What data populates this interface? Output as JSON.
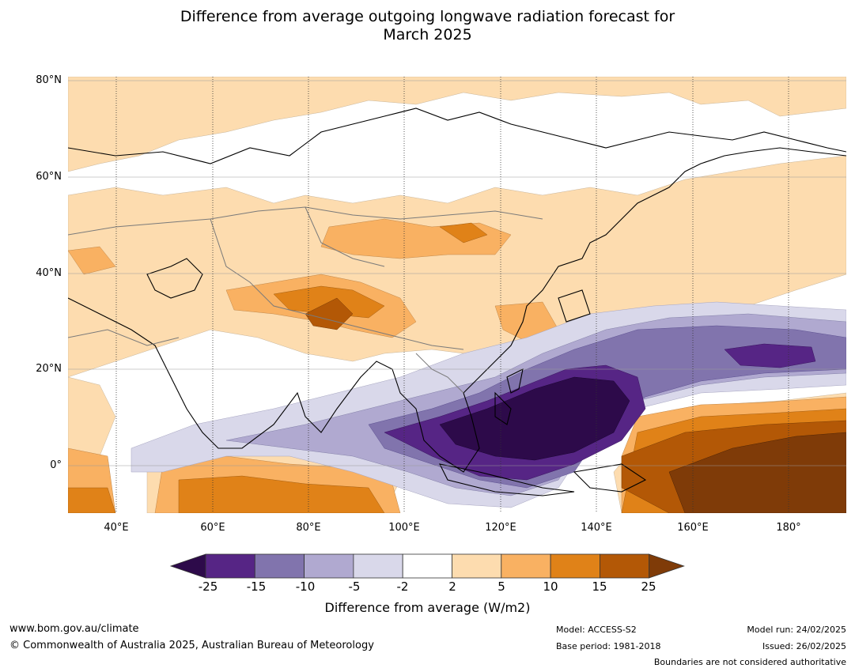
{
  "title_line1": "Difference from average outgoing longwave radiation forecast for",
  "title_line2": "March 2025",
  "lat_labels": [
    "80°N",
    "60°N",
    "40°N",
    "20°N",
    "0°"
  ],
  "lon_labels": [
    "40°E",
    "60°E",
    "80°E",
    "100°E",
    "120°E",
    "140°E",
    "160°E",
    "180°"
  ],
  "colorbar": {
    "ticks": [
      "-25",
      "-15",
      "-10",
      "-5",
      "-2",
      "2",
      "5",
      "10",
      "15",
      "25"
    ],
    "colors": [
      "#2d0a4a",
      "#562585",
      "#8174ad",
      "#b0a9d0",
      "#d9d8ea",
      "#ffffff",
      "#fddcaf",
      "#f9b162",
      "#e08218",
      "#b35806",
      "#7f3b08"
    ],
    "label": "Difference from average (W/m2)"
  },
  "footer": {
    "url": "www.bom.gov.au/climate",
    "copyright": "© Commonwealth of Australia 2025, Australian Bureau of Meteorology",
    "model": "Model: ACCESS-S2",
    "base_period": "Base period: 1981-2018",
    "model_run": "Model run: 24/02/2025",
    "issued": "Issued: 26/02/2025",
    "boundaries": "Boundaries are not considered authoritative"
  },
  "map": {
    "lon_range": [
      30,
      192
    ],
    "lat_range": [
      -10,
      80
    ],
    "projection": "plate carree",
    "gridlines": true
  }
}
